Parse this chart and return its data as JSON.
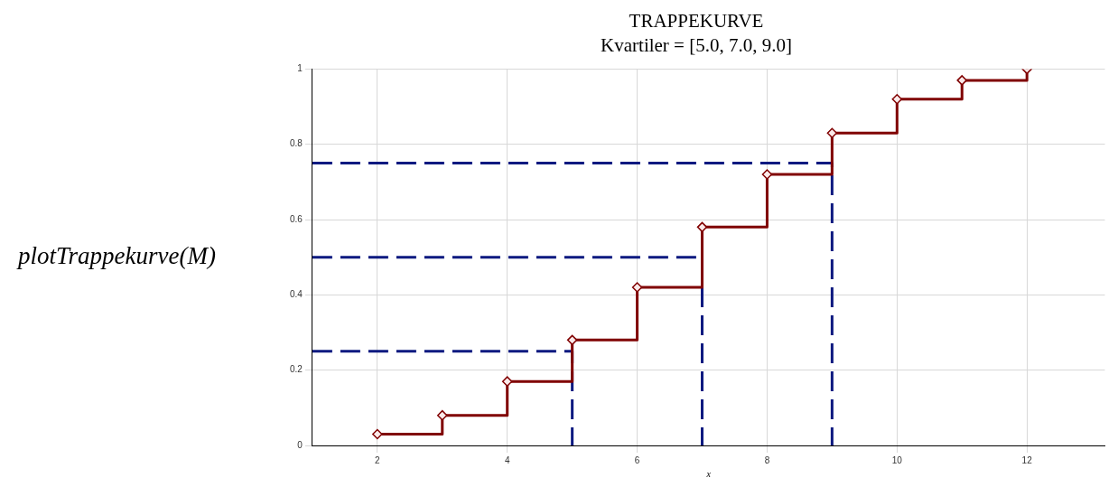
{
  "chart_data": {
    "type": "step",
    "title": "TRAPPEKURVE",
    "subtitle": "Kvartiler = [5.0, 7.0, 9.0]",
    "xlabel": "x",
    "annotations": [
      "plotTrappekurve(M)"
    ],
    "xlim": [
      1,
      13.2
    ],
    "ylim": [
      0,
      1
    ],
    "xticks": [
      2,
      4,
      6,
      8,
      10,
      12
    ],
    "yticks": [
      0,
      0.2,
      0.4,
      0.6,
      0.8,
      1
    ],
    "grid": true,
    "legend": false,
    "series": [
      {
        "color": "#800000",
        "marker": "diamond",
        "line_style": "solid",
        "x": [
          2,
          3,
          4,
          5,
          6,
          7,
          8,
          9,
          10,
          11,
          12
        ],
        "values": [
          0.03,
          0.08,
          0.17,
          0.28,
          0.42,
          0.58,
          0.72,
          0.83,
          0.92,
          0.97,
          1.0
        ]
      },
      {
        "type": "line",
        "color": "#0d1a80",
        "marker": "none",
        "line_style": "dashed",
        "x": [
          1,
          5,
          5
        ],
        "values": [
          0.25,
          0.25,
          0
        ]
      },
      {
        "type": "line",
        "color": "#0d1a80",
        "marker": "none",
        "line_style": "dashed",
        "x": [
          1,
          7,
          7
        ],
        "values": [
          0.5,
          0.5,
          0
        ]
      },
      {
        "type": "line",
        "color": "#0d1a80",
        "marker": "none",
        "line_style": "dashed",
        "x": [
          1,
          9,
          9
        ],
        "values": [
          0.75,
          0.75,
          0
        ]
      }
    ]
  }
}
